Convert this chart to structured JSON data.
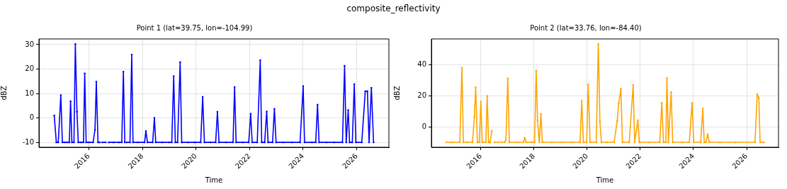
{
  "chart_data": [
    {
      "type": "other",
      "title": "composite_reflectivity"
    },
    {
      "type": "line",
      "title": "Point 1 (lat=39.75, lon=-104.99)",
      "xlabel": "Time",
      "ylabel": "dBZ",
      "color": "#0000ff",
      "marker": "square",
      "grid": true,
      "legend": false,
      "xlim": [
        "2014-02-20",
        "2027-03-15"
      ],
      "ylim": [
        -12,
        32.3
      ],
      "yticks": [
        -10,
        0,
        10,
        20,
        30
      ],
      "xticks": [
        {
          "value": "2016-01-01",
          "label": "2016"
        },
        {
          "value": "2018-01-01",
          "label": "2018"
        },
        {
          "value": "2020-01-01",
          "label": "2020"
        },
        {
          "value": "2022-01-01",
          "label": "2022"
        },
        {
          "value": "2024-01-01",
          "label": "2024"
        },
        {
          "value": "2026-01-01",
          "label": "2026"
        }
      ],
      "x": [
        "2014-09-16",
        "2014-10-15",
        "2014-11-10",
        "2014-12-15",
        "2015-01-05",
        "2015-02-10",
        "2015-03-15",
        "2015-04-10",
        "2015-04-27",
        "2015-05-15",
        "2015-06-12",
        "2015-07-01",
        "2015-07-23",
        "2015-08-10",
        "2015-09-15",
        "2015-10-20",
        "2015-11-06",
        "2015-11-25",
        "2016-01-01",
        "2016-02-28",
        "2016-03-25",
        "2016-04-12",
        "2016-05-05",
        "2016-05-30",
        "2016-06-15",
        "2016-07-01",
        "2016-08-18",
        "2016-09-05",
        "2016-09-27",
        "2016-12-01",
        "2017-02-15",
        "2017-03-25",
        "2017-04-16",
        "2017-05-05",
        "2017-05-20",
        "2017-05-30",
        "2017-07-15",
        "2017-08-08",
        "2017-08-25",
        "2017-11-01",
        "2018-01-30",
        "2018-02-17",
        "2018-03-10",
        "2018-05-20",
        "2018-06-13",
        "2018-07-01",
        "2018-10-01",
        "2019-01-01",
        "2019-02-05",
        "2019-03-03",
        "2019-03-25",
        "2019-04-25",
        "2019-05-30",
        "2019-06-20",
        "2019-09-15",
        "2019-12-15",
        "2020-03-05",
        "2020-04-01",
        "2020-04-25",
        "2020-07-15",
        "2020-09-25",
        "2020-10-19",
        "2020-11-10",
        "2021-02-15",
        "2021-05-20",
        "2021-06-10",
        "2021-07-01",
        "2021-10-01",
        "2021-12-20",
        "2022-01-15",
        "2022-02-05",
        "2022-04-15",
        "2022-05-26",
        "2022-06-15",
        "2022-07-25",
        "2022-08-22",
        "2022-09-10",
        "2022-11-10",
        "2022-12-05",
        "2022-12-28",
        "2023-04-01",
        "2023-08-01",
        "2023-11-20",
        "2024-01-01",
        "2024-01-20",
        "2024-05-01",
        "2024-06-20",
        "2024-07-15",
        "2024-08-05",
        "2024-11-15",
        "2025-03-01",
        "2025-06-20",
        "2025-07-19",
        "2025-08-10",
        "2025-09-06",
        "2025-09-25",
        "2025-11-01",
        "2025-11-28",
        "2025-12-20",
        "2026-03-10",
        "2026-04-27",
        "2026-05-26",
        "2026-06-18",
        "2026-07-19",
        "2026-08-18"
      ],
      "values": [
        1.0,
        -10,
        -10,
        9.3,
        -10,
        -10,
        -10,
        -10,
        6.8,
        -10,
        -10,
        30.2,
        2.5,
        -10,
        -10,
        -10,
        18.2,
        -10,
        -10,
        -10,
        -4.9,
        14.8,
        -10,
        -10,
        null,
        -10,
        -10,
        null,
        -10,
        -10,
        -10,
        -10,
        18.9,
        -10,
        null,
        -10,
        -10,
        25.9,
        -10,
        -10,
        -10,
        -5.4,
        -10,
        -10,
        0,
        -10,
        -10,
        -10,
        -10,
        17.1,
        -10,
        -10,
        22.8,
        -10,
        -10,
        -10,
        -10,
        8.6,
        -10,
        -10,
        -10,
        2.5,
        -10,
        -10,
        -10,
        12.6,
        -10,
        -10,
        -10,
        1.7,
        -10,
        -10,
        23.6,
        -10,
        -10,
        2.6,
        -10,
        -10,
        3.7,
        -10,
        -10,
        -10,
        -10,
        13.0,
        -10,
        -10,
        -10,
        5.4,
        -10,
        -10,
        -10,
        -10,
        21.3,
        -10,
        3.2,
        -10,
        -10,
        13.8,
        -10,
        -10,
        10.9,
        10.9,
        -10,
        12.3,
        -10
      ]
    },
    {
      "type": "line",
      "title": "Point 2 (lat=33.76, lon=-84.40)",
      "xlabel": "Time",
      "ylabel": "dBZ",
      "color": "#ffa500",
      "marker": "square",
      "grid": true,
      "legend": false,
      "xlim": [
        "2014-02-20",
        "2027-03-15"
      ],
      "ylim": [
        -13.2,
        56.7
      ],
      "yticks": [
        0,
        20,
        40
      ],
      "xticks": [
        {
          "value": "2016-01-01",
          "label": "2016"
        },
        {
          "value": "2018-01-01",
          "label": "2018"
        },
        {
          "value": "2020-01-01",
          "label": "2020"
        },
        {
          "value": "2022-01-01",
          "label": "2022"
        },
        {
          "value": "2024-01-01",
          "label": "2024"
        },
        {
          "value": "2026-01-01",
          "label": "2026"
        }
      ],
      "x": [
        "2014-09-15",
        "2014-12-01",
        "2015-03-17",
        "2015-04-16",
        "2015-05-05",
        "2015-07-01",
        "2015-09-08",
        "2015-10-04",
        "2015-10-22",
        "2015-11-14",
        "2015-12-10",
        "2016-01-01",
        "2016-01-20",
        "2016-03-10",
        "2016-03-28",
        "2016-04-16",
        "2016-05-08",
        "2016-05-30",
        "2016-06-15",
        "2016-07-05",
        "2016-08-28",
        "2016-09-15",
        "2016-10-05",
        "2016-11-22",
        "2016-12-10",
        "2017-01-05",
        "2017-01-26",
        "2017-04-28",
        "2017-05-15",
        "2017-05-28",
        "2017-08-08",
        "2017-08-26",
        "2017-09-15",
        "2017-12-01",
        "2018-01-08",
        "2018-01-30",
        "2018-02-18",
        "2018-03-14",
        "2018-04-05",
        "2018-04-25",
        "2018-09-01",
        "2019-01-15",
        "2019-06-01",
        "2019-09-25",
        "2019-10-19",
        "2019-11-10",
        "2019-12-25",
        "2020-01-15",
        "2020-02-10",
        "2020-05-05",
        "2020-06-02",
        "2020-06-24",
        "2020-07-15",
        "2020-10-01",
        "2021-01-05",
        "2021-02-17",
        "2021-03-10",
        "2021-04-08",
        "2021-04-30",
        "2021-08-01",
        "2021-09-24",
        "2021-10-15",
        "2021-11-28",
        "2021-12-18",
        "2022-05-01",
        "2022-09-25",
        "2022-10-23",
        "2022-11-15",
        "2022-12-18",
        "2023-01-01",
        "2023-01-22",
        "2023-02-28",
        "2023-03-22",
        "2023-08-01",
        "2023-11-05",
        "2023-12-13",
        "2024-01-05",
        "2024-04-10",
        "2024-05-08",
        "2024-05-28",
        "2024-06-20",
        "2024-07-15",
        "2024-08-05",
        "2025-01-01",
        "2025-08-01",
        "2026-04-26",
        "2026-05-26",
        "2026-06-18",
        "2026-07-05",
        "2026-08-25"
      ],
      "values": [
        -10,
        -10,
        -10,
        38.0,
        -10,
        -10,
        -10,
        6.5,
        25.4,
        -10,
        -10,
        16.3,
        -10,
        -10,
        19.9,
        -10,
        -10,
        -2.6,
        null,
        -10,
        -10,
        null,
        -10,
        -10,
        -8.5,
        31.2,
        -10,
        -10,
        null,
        -10,
        -10,
        -7.1,
        -10,
        -10,
        -10,
        36.2,
        4.1,
        -10,
        8.3,
        -10,
        -10,
        -10,
        -10,
        -10,
        16.8,
        -10,
        -10,
        27.3,
        -10,
        -10,
        53.5,
        3.6,
        -10,
        -10,
        -10,
        3.9,
        15.2,
        24.6,
        -10,
        -10,
        26.9,
        -10,
        4.2,
        -10,
        -10,
        -10,
        15.5,
        -10,
        -10,
        31.4,
        -10,
        22.3,
        -10,
        -10,
        -10,
        15.3,
        -10,
        -10,
        11.8,
        -10,
        -10,
        -4.8,
        -10,
        -10,
        -10,
        -10,
        21.1,
        18.7,
        -10,
        -10
      ]
    }
  ]
}
